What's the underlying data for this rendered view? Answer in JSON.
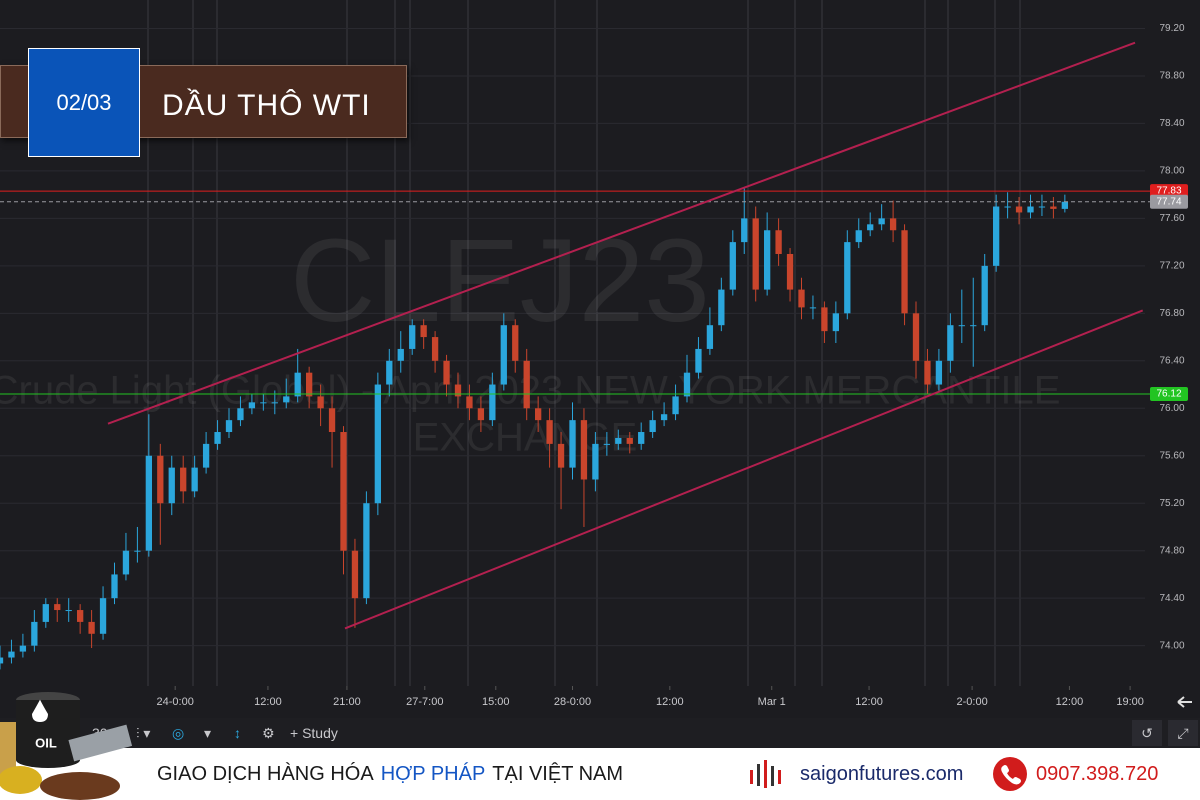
{
  "header": {
    "date": "02/03",
    "title": "DẦU THÔ WTI"
  },
  "toolbar": {
    "interval": "30",
    "study": "Study"
  },
  "logo": {
    "label": "OIL"
  },
  "banner": {
    "slogan": [
      "GIAO DỊCH HÀNG HÓA",
      "HỢP PHÁP",
      "TẠI VIỆT NAM"
    ],
    "website": "saigonfutures.com",
    "phone": "0907.398.720"
  },
  "chart_data": {
    "type": "candlestick",
    "watermark": {
      "symbol": "CLEJ23",
      "description": [
        "Crude Light (Global) - April 2023 NEW YORK MERCANTILE",
        "EXCHANGE"
      ]
    },
    "up_color": "#2ba6dc",
    "down_color": "#c9452c",
    "xlim": [
      0,
      100
    ],
    "xticks": [
      {
        "value": 15.3,
        "label": "24-0:00"
      },
      {
        "value": 23.4,
        "label": "12:00"
      },
      {
        "value": 30.3,
        "label": "21:00"
      },
      {
        "value": 37.1,
        "label": "27-7:00"
      },
      {
        "value": 43.3,
        "label": "15:00"
      },
      {
        "value": 50.0,
        "label": "28-0:00"
      },
      {
        "value": 58.5,
        "label": "12:00"
      },
      {
        "value": 67.4,
        "label": "Mar 1"
      },
      {
        "value": 75.9,
        "label": "12:00"
      },
      {
        "value": 84.9,
        "label": "2-0:00"
      },
      {
        "value": 93.4,
        "label": "12:00"
      },
      {
        "value": 98.7,
        "label": "19:00"
      }
    ],
    "ylim": [
      73.66,
      79.44
    ],
    "yticks": [
      {
        "value": 74.0,
        "label": "74.00"
      },
      {
        "value": 74.4,
        "label": "74.40"
      },
      {
        "value": 74.8,
        "label": "74.80"
      },
      {
        "value": 75.2,
        "label": "75.20"
      },
      {
        "value": 75.6,
        "label": "75.60"
      },
      {
        "value": 76.0,
        "label": "76.00"
      },
      {
        "value": 76.4,
        "label": "76.40"
      },
      {
        "value": 76.8,
        "label": "76.80"
      },
      {
        "value": 77.2,
        "label": "77.20"
      },
      {
        "value": 77.6,
        "label": "77.60"
      },
      {
        "value": 78.0,
        "label": "78.00"
      },
      {
        "value": 78.4,
        "label": "78.40"
      },
      {
        "value": 78.8,
        "label": "78.80"
      },
      {
        "value": 79.2,
        "label": "79.20"
      }
    ],
    "grid": true,
    "x": [
      0,
      1,
      2,
      3,
      4,
      5,
      6,
      7,
      8,
      9,
      10,
      11,
      12,
      13,
      14,
      15,
      16,
      17,
      18,
      19,
      20,
      21,
      22,
      23,
      24,
      25,
      26,
      27,
      28,
      29,
      30,
      31,
      32,
      33,
      34,
      35,
      36,
      37,
      38,
      39,
      40,
      41,
      42,
      43,
      44,
      45,
      46,
      47,
      48,
      49,
      50,
      51,
      52,
      53,
      54,
      55,
      56,
      57,
      58,
      59,
      60,
      61,
      62,
      63,
      64,
      65,
      66,
      67,
      68,
      69,
      70,
      71,
      72,
      73,
      74,
      75,
      76,
      77,
      78,
      79,
      80,
      81,
      82,
      83,
      84,
      85,
      86,
      87,
      88,
      89,
      90,
      91,
      92,
      93
    ],
    "open": [
      73.85,
      73.9,
      73.95,
      74.0,
      74.2,
      74.35,
      74.3,
      74.3,
      74.2,
      74.1,
      74.4,
      74.6,
      74.8,
      74.8,
      75.6,
      75.2,
      75.5,
      75.3,
      75.5,
      75.7,
      75.8,
      75.9,
      76.0,
      76.05,
      76.05,
      76.05,
      76.1,
      76.3,
      76.1,
      76.0,
      75.8,
      74.8,
      74.4,
      75.2,
      76.2,
      76.4,
      76.5,
      76.7,
      76.6,
      76.4,
      76.2,
      76.1,
      76.0,
      75.9,
      76.2,
      76.7,
      76.4,
      76.0,
      75.9,
      75.7,
      75.5,
      75.9,
      75.4,
      75.7,
      75.7,
      75.75,
      75.7,
      75.8,
      75.9,
      75.95,
      76.1,
      76.3,
      76.5,
      76.7,
      77.0,
      77.4,
      77.6,
      77.0,
      77.5,
      77.3,
      77.0,
      76.85,
      76.85,
      76.65,
      76.8,
      77.4,
      77.5,
      77.55,
      77.6,
      77.5,
      76.8,
      76.4,
      76.2,
      76.4,
      76.7,
      76.7,
      76.7,
      77.2,
      77.7,
      77.7,
      77.65,
      77.7,
      77.7,
      77.68
    ],
    "high": [
      74.0,
      74.05,
      74.1,
      74.3,
      74.4,
      74.4,
      74.4,
      74.35,
      74.3,
      74.5,
      74.7,
      74.95,
      75.0,
      75.95,
      75.7,
      75.6,
      75.6,
      75.6,
      75.8,
      75.9,
      76.0,
      76.1,
      76.12,
      76.12,
      76.15,
      76.25,
      76.5,
      76.35,
      76.2,
      76.1,
      75.85,
      74.9,
      75.3,
      76.3,
      76.5,
      76.65,
      76.75,
      76.75,
      76.65,
      76.45,
      76.3,
      76.2,
      76.1,
      76.3,
      76.8,
      76.75,
      76.5,
      76.1,
      76.0,
      75.8,
      76.05,
      76.0,
      75.8,
      75.8,
      75.82,
      75.8,
      75.88,
      75.98,
      76.05,
      76.2,
      76.45,
      76.6,
      76.85,
      77.1,
      77.5,
      77.86,
      77.7,
      77.65,
      77.6,
      77.35,
      77.1,
      76.95,
      76.9,
      76.9,
      77.5,
      77.6,
      77.65,
      77.72,
      77.75,
      77.55,
      76.9,
      76.5,
      76.5,
      76.8,
      77.0,
      77.1,
      77.3,
      77.8,
      77.82,
      77.78,
      77.8,
      77.8,
      77.78,
      77.8
    ],
    "low": [
      73.8,
      73.85,
      73.9,
      73.95,
      74.15,
      74.2,
      74.2,
      74.1,
      73.98,
      74.05,
      74.35,
      74.55,
      74.7,
      74.75,
      74.85,
      75.1,
      75.2,
      75.25,
      75.45,
      75.65,
      75.75,
      75.85,
      75.95,
      75.98,
      75.95,
      76.0,
      76.05,
      76.0,
      75.85,
      75.5,
      74.6,
      74.15,
      74.35,
      75.1,
      76.1,
      76.3,
      76.45,
      76.5,
      76.3,
      76.1,
      76.0,
      75.9,
      75.8,
      75.85,
      76.15,
      76.3,
      75.9,
      75.8,
      75.5,
      75.15,
      75.4,
      75.0,
      75.3,
      75.6,
      75.65,
      75.62,
      75.65,
      75.75,
      75.85,
      75.9,
      76.05,
      76.25,
      76.45,
      76.65,
      76.95,
      77.3,
      76.9,
      76.95,
      77.2,
      76.9,
      76.75,
      76.75,
      76.55,
      76.55,
      76.75,
      77.35,
      77.45,
      77.5,
      77.4,
      76.7,
      76.25,
      76.12,
      76.15,
      76.3,
      76.55,
      76.35,
      76.65,
      77.15,
      77.6,
      77.55,
      77.6,
      77.62,
      77.6,
      77.65
    ],
    "close": [
      73.9,
      73.95,
      74.0,
      74.2,
      74.35,
      74.3,
      74.3,
      74.2,
      74.1,
      74.4,
      74.6,
      74.8,
      74.8,
      75.6,
      75.2,
      75.5,
      75.3,
      75.5,
      75.7,
      75.8,
      75.9,
      76.0,
      76.05,
      76.05,
      76.05,
      76.1,
      76.3,
      76.1,
      76.0,
      75.8,
      74.8,
      74.4,
      75.2,
      76.2,
      76.4,
      76.5,
      76.7,
      76.6,
      76.4,
      76.2,
      76.1,
      76.0,
      75.9,
      76.2,
      76.7,
      76.4,
      76.0,
      75.9,
      75.7,
      75.5,
      75.9,
      75.4,
      75.7,
      75.7,
      75.75,
      75.7,
      75.8,
      75.9,
      75.95,
      76.1,
      76.3,
      76.5,
      76.7,
      77.0,
      77.4,
      77.6,
      77.0,
      77.5,
      77.3,
      77.0,
      76.85,
      76.85,
      76.65,
      76.8,
      77.4,
      77.5,
      77.55,
      77.6,
      77.5,
      76.8,
      76.4,
      76.2,
      76.4,
      76.7,
      76.7,
      76.7,
      77.2,
      77.7,
      77.7,
      77.65,
      77.7,
      77.7,
      77.68,
      77.74
    ],
    "levels": [
      {
        "value": 77.83,
        "color": "#e01e1e",
        "style": "solid"
      },
      {
        "value": 77.74,
        "color": "#9a9aa0",
        "style": "dashed"
      },
      {
        "value": 76.12,
        "color": "#22c422",
        "style": "solid"
      }
    ],
    "trendlines": [
      {
        "x": [
          9.43,
          99.13
        ],
        "y": [
          75.87,
          79.08
        ],
        "color": "#b3204f"
      },
      {
        "x": [
          30.13,
          99.8
        ],
        "y": [
          74.145,
          76.824
        ],
        "color": "#b3204f"
      }
    ]
  }
}
